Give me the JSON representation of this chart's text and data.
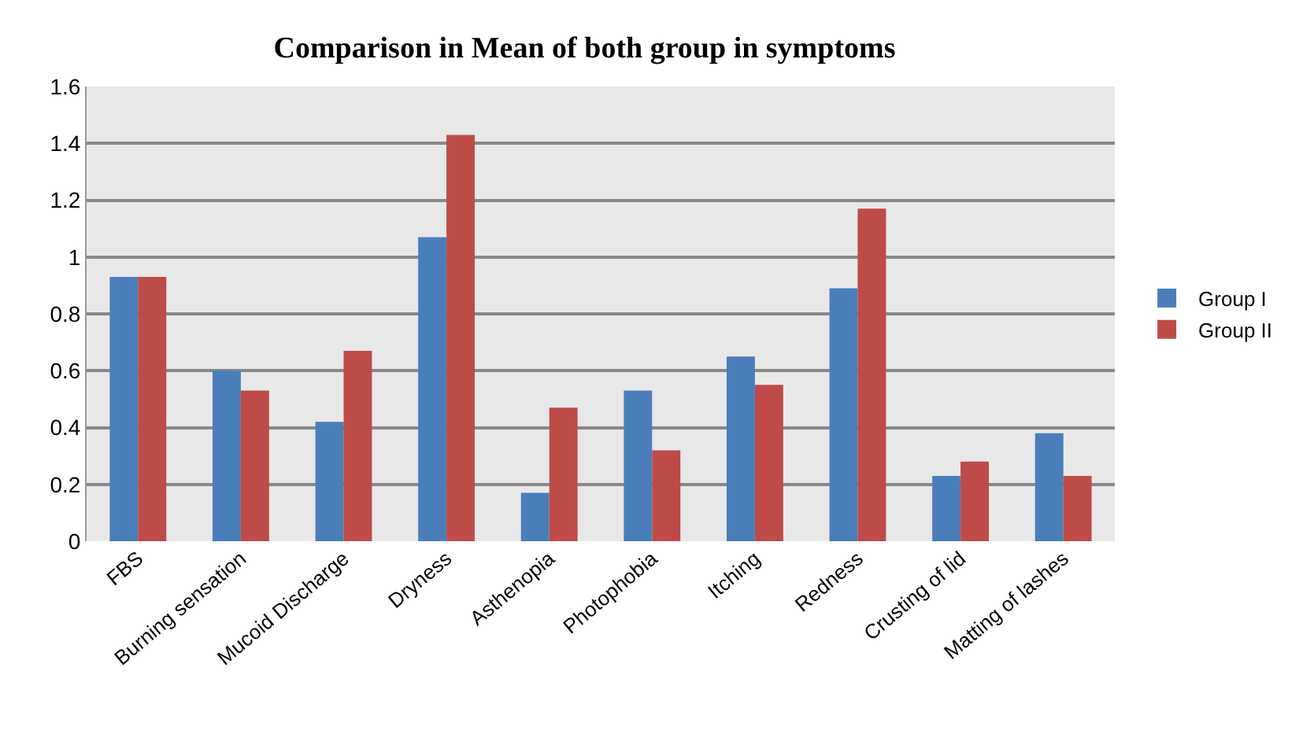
{
  "chart_data": {
    "type": "bar",
    "title": "Comparison in Mean of both group in symptoms",
    "categories": [
      "FBS",
      "Burning sensation",
      "Mucoid Discharge",
      "Dryness",
      "Asthenopia",
      "Photophobia",
      "Itching",
      "Redness",
      "Crusting of lid",
      "Matting of lashes"
    ],
    "series": [
      {
        "name": "Group I",
        "color": "#4a7ebb",
        "values": [
          0.93,
          0.6,
          0.42,
          1.07,
          0.17,
          0.53,
          0.65,
          0.89,
          0.23,
          0.38
        ]
      },
      {
        "name": "Group II",
        "color": "#be4b48",
        "values": [
          0.93,
          0.53,
          0.67,
          1.43,
          0.47,
          0.32,
          0.55,
          1.17,
          0.28,
          0.23
        ]
      }
    ],
    "ylim": [
      0,
      1.6
    ],
    "yticks": [
      0,
      0.2,
      0.4,
      0.6,
      0.8,
      1,
      1.2,
      1.4,
      1.6
    ],
    "grid": "y",
    "legend": "right"
  }
}
